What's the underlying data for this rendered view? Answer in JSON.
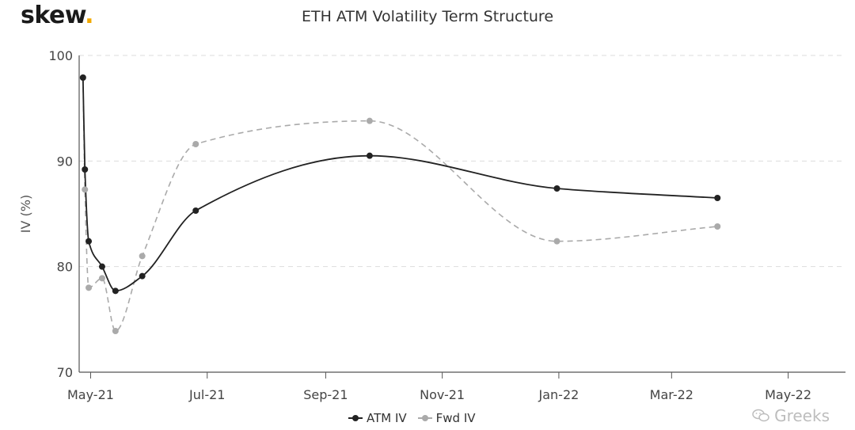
{
  "brand": {
    "name": "skew",
    "dot": "."
  },
  "watermark": {
    "text": "Greeks",
    "icon": "wechat-icon"
  },
  "colors": {
    "atm": "#222222",
    "fwd": "#aaaaaa",
    "grid": "#dddddd",
    "axis": "#555555",
    "brand_dot": "#f2a900"
  },
  "chart_data": {
    "type": "line",
    "title": "ETH ATM Volatility Term Structure",
    "xlabel": "",
    "ylabel": "IV (%)",
    "ylim": [
      70,
      100
    ],
    "yticks": [
      70,
      80,
      90,
      100
    ],
    "xlim": [
      "2021-04-25",
      "2022-05-31"
    ],
    "xticks": [
      {
        "date": "2021-05-01",
        "label": "May-21"
      },
      {
        "date": "2021-07-01",
        "label": "Jul-21"
      },
      {
        "date": "2021-09-01",
        "label": "Sep-21"
      },
      {
        "date": "2021-11-01",
        "label": "Nov-21"
      },
      {
        "date": "2022-01-01",
        "label": "Jan-22"
      },
      {
        "date": "2022-03-01",
        "label": "Mar-22"
      },
      {
        "date": "2022-05-01",
        "label": "May-22"
      }
    ],
    "grid": "horizontal dashed",
    "legend": "bottom",
    "series": [
      {
        "name": "ATM IV",
        "style": "solid",
        "x": [
          "2021-04-27",
          "2021-04-28",
          "2021-04-30",
          "2021-05-07",
          "2021-05-14",
          "2021-05-28",
          "2021-06-25",
          "2021-09-24",
          "2021-12-31",
          "2022-03-25"
        ],
        "y": [
          97.9,
          89.2,
          82.4,
          80.0,
          77.7,
          79.1,
          85.3,
          90.5,
          87.4,
          86.5
        ]
      },
      {
        "name": "Fwd IV",
        "style": "dashed",
        "x": [
          "2021-04-27",
          "2021-04-28",
          "2021-04-30",
          "2021-05-07",
          "2021-05-14",
          "2021-05-28",
          "2021-06-25",
          "2021-09-24",
          "2021-12-31",
          "2022-03-25"
        ],
        "y": [
          97.9,
          87.3,
          78.0,
          78.9,
          73.9,
          81.0,
          91.6,
          93.8,
          82.4,
          83.8
        ]
      }
    ]
  }
}
